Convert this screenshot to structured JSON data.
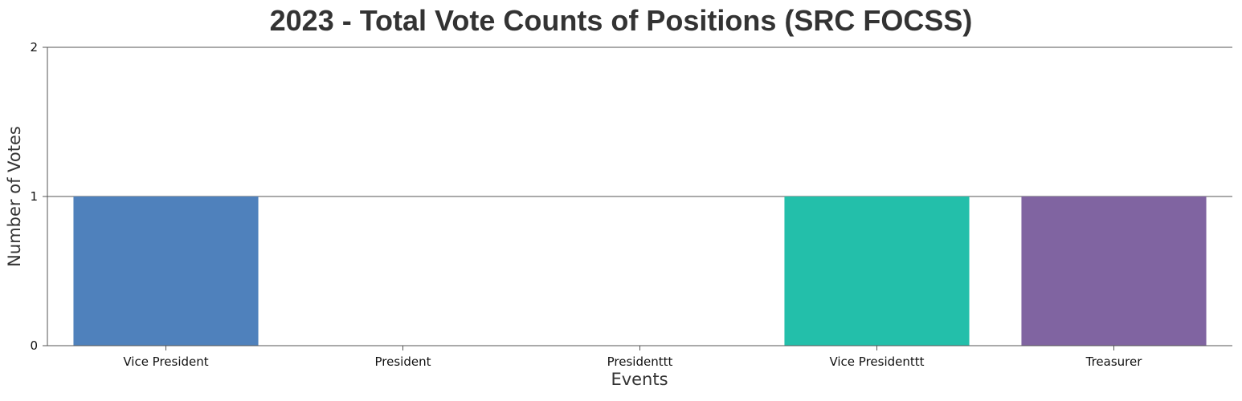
{
  "chart_data": {
    "type": "bar",
    "title": "2023 - Total Vote Counts of Positions (SRC FOCSS)",
    "xlabel": "Events",
    "ylabel": "Number of Votes",
    "categories": [
      "Vice President",
      "President",
      "Presidenttt",
      "Vice Presidenttt",
      "Treasurer"
    ],
    "values": [
      1,
      0,
      0,
      1,
      1
    ],
    "colors": [
      "#4f81bc",
      "#c0504e",
      "#9bbb58",
      "#23bfaa",
      "#8064a1"
    ],
    "ylim": [
      0,
      2
    ],
    "yticks": [
      "0",
      "1",
      "2"
    ],
    "grid": true,
    "legend": "none"
  }
}
